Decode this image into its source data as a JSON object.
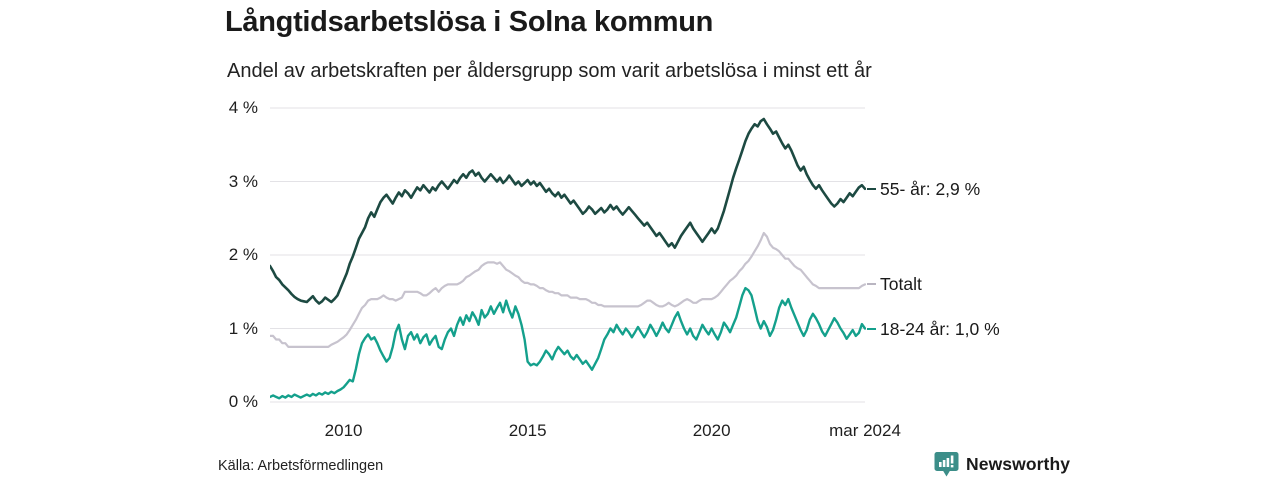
{
  "header": {
    "title": "Långtidsarbetslösa i Solna kommun",
    "subtitle": "Andel av arbetskraften per åldersgrupp som varit arbetslösa i minst ett år"
  },
  "source": {
    "label": "Källa: Arbetsförmedlingen"
  },
  "branding": {
    "name": "Newsworthy",
    "color": "#2e807c",
    "icon": "newsworthy-bubble-barchart-icon"
  },
  "colors": {
    "grid": "#e3e2e6",
    "text": "#1a1a1a",
    "series_55": "#1d4a42",
    "series_total": "#c7c3ce",
    "series_18_24": "#14a08c"
  },
  "chart_data": {
    "type": "line",
    "title": "Långtidsarbetslösa i Solna kommun",
    "subtitle": "Andel av arbetskraften per åldersgrupp som varit arbetslösa i minst ett år",
    "x_start": "2008-01",
    "x_end": "2024-03",
    "x_axis": {
      "ticks": [
        {
          "label": "2010",
          "month_index": 24
        },
        {
          "label": "2015",
          "month_index": 84
        },
        {
          "label": "2020",
          "month_index": 144
        },
        {
          "label": "mar 2024",
          "month_index": 194
        }
      ]
    },
    "y_axis": {
      "unit": "%",
      "range": [
        0,
        4
      ],
      "ticks": [
        {
          "label": "4 %",
          "value": 4
        },
        {
          "label": "3 %",
          "value": 3
        },
        {
          "label": "2 %",
          "value": 2
        },
        {
          "label": "1 %",
          "value": 1
        },
        {
          "label": "0 %",
          "value": 0
        }
      ]
    },
    "legend_position": "right-end-labels",
    "grid": true,
    "series": [
      {
        "name": "55- år",
        "end_label": "55- år: 2,9 %",
        "color": "#1d4a42",
        "stroke_width": 2.6,
        "values": [
          1.85,
          1.78,
          1.7,
          1.66,
          1.6,
          1.56,
          1.52,
          1.47,
          1.43,
          1.4,
          1.38,
          1.37,
          1.36,
          1.4,
          1.44,
          1.38,
          1.34,
          1.37,
          1.42,
          1.39,
          1.36,
          1.4,
          1.45,
          1.55,
          1.65,
          1.75,
          1.88,
          1.98,
          2.1,
          2.22,
          2.3,
          2.38,
          2.5,
          2.58,
          2.52,
          2.62,
          2.72,
          2.78,
          2.82,
          2.76,
          2.7,
          2.78,
          2.85,
          2.8,
          2.88,
          2.84,
          2.78,
          2.85,
          2.92,
          2.88,
          2.95,
          2.9,
          2.85,
          2.92,
          2.88,
          2.95,
          3.0,
          2.95,
          2.9,
          2.96,
          3.02,
          2.98,
          3.05,
          3.1,
          3.05,
          3.12,
          3.15,
          3.08,
          3.12,
          3.05,
          3.0,
          3.05,
          3.1,
          3.05,
          3.0,
          3.05,
          2.98,
          3.02,
          3.08,
          3.02,
          2.96,
          3.0,
          2.94,
          2.98,
          3.02,
          2.96,
          3.0,
          2.94,
          2.98,
          2.92,
          2.86,
          2.9,
          2.84,
          2.8,
          2.85,
          2.78,
          2.82,
          2.76,
          2.7,
          2.74,
          2.68,
          2.62,
          2.56,
          2.6,
          2.66,
          2.62,
          2.56,
          2.6,
          2.64,
          2.58,
          2.62,
          2.68,
          2.62,
          2.66,
          2.6,
          2.55,
          2.6,
          2.65,
          2.6,
          2.55,
          2.5,
          2.45,
          2.4,
          2.44,
          2.38,
          2.32,
          2.26,
          2.3,
          2.24,
          2.18,
          2.12,
          2.16,
          2.1,
          2.18,
          2.26,
          2.32,
          2.38,
          2.44,
          2.36,
          2.3,
          2.24,
          2.18,
          2.24,
          2.3,
          2.36,
          2.3,
          2.36,
          2.48,
          2.6,
          2.75,
          2.9,
          3.05,
          3.18,
          3.3,
          3.42,
          3.55,
          3.65,
          3.72,
          3.78,
          3.75,
          3.82,
          3.85,
          3.78,
          3.72,
          3.65,
          3.68,
          3.6,
          3.52,
          3.45,
          3.5,
          3.42,
          3.32,
          3.22,
          3.15,
          3.2,
          3.1,
          3.02,
          2.95,
          2.9,
          2.95,
          2.88,
          2.82,
          2.76,
          2.7,
          2.66,
          2.7,
          2.76,
          2.72,
          2.78,
          2.84,
          2.8,
          2.86,
          2.92,
          2.95,
          2.9
        ]
      },
      {
        "name": "Totalt",
        "end_label": "Totalt",
        "color": "#c7c3ce",
        "stroke_width": 2.2,
        "values": [
          0.9,
          0.9,
          0.85,
          0.85,
          0.8,
          0.8,
          0.75,
          0.75,
          0.75,
          0.75,
          0.75,
          0.75,
          0.75,
          0.75,
          0.75,
          0.75,
          0.75,
          0.75,
          0.75,
          0.75,
          0.78,
          0.8,
          0.82,
          0.85,
          0.88,
          0.92,
          0.98,
          1.05,
          1.12,
          1.2,
          1.28,
          1.32,
          1.38,
          1.4,
          1.4,
          1.4,
          1.42,
          1.45,
          1.42,
          1.4,
          1.4,
          1.38,
          1.4,
          1.42,
          1.5,
          1.5,
          1.5,
          1.5,
          1.5,
          1.48,
          1.45,
          1.45,
          1.48,
          1.52,
          1.55,
          1.5,
          1.55,
          1.58,
          1.6,
          1.6,
          1.6,
          1.6,
          1.62,
          1.65,
          1.7,
          1.72,
          1.75,
          1.78,
          1.8,
          1.85,
          1.88,
          1.9,
          1.9,
          1.9,
          1.88,
          1.9,
          1.85,
          1.8,
          1.78,
          1.75,
          1.72,
          1.7,
          1.65,
          1.62,
          1.62,
          1.6,
          1.6,
          1.58,
          1.55,
          1.55,
          1.52,
          1.5,
          1.5,
          1.48,
          1.48,
          1.45,
          1.45,
          1.45,
          1.42,
          1.42,
          1.42,
          1.4,
          1.4,
          1.4,
          1.38,
          1.35,
          1.35,
          1.32,
          1.32,
          1.3,
          1.3,
          1.3,
          1.3,
          1.3,
          1.3,
          1.3,
          1.3,
          1.3,
          1.3,
          1.3,
          1.3,
          1.32,
          1.35,
          1.38,
          1.38,
          1.35,
          1.32,
          1.3,
          1.3,
          1.32,
          1.35,
          1.32,
          1.3,
          1.32,
          1.35,
          1.38,
          1.4,
          1.38,
          1.35,
          1.35,
          1.38,
          1.4,
          1.4,
          1.4,
          1.4,
          1.42,
          1.45,
          1.5,
          1.55,
          1.6,
          1.65,
          1.68,
          1.72,
          1.78,
          1.82,
          1.88,
          1.92,
          1.98,
          2.05,
          2.12,
          2.2,
          2.3,
          2.25,
          2.15,
          2.1,
          2.08,
          2.05,
          2.0,
          1.95,
          1.95,
          1.9,
          1.85,
          1.82,
          1.8,
          1.75,
          1.7,
          1.65,
          1.6,
          1.58,
          1.55,
          1.55,
          1.55,
          1.55,
          1.55,
          1.55,
          1.55,
          1.55,
          1.55,
          1.55,
          1.55,
          1.55,
          1.55,
          1.55,
          1.58,
          1.6
        ]
      },
      {
        "name": "18-24 år",
        "end_label": "18-24 år: 1,0 %",
        "color": "#14a08c",
        "stroke_width": 2.4,
        "values": [
          0.07,
          0.09,
          0.07,
          0.05,
          0.08,
          0.06,
          0.09,
          0.07,
          0.1,
          0.08,
          0.06,
          0.08,
          0.1,
          0.08,
          0.11,
          0.09,
          0.12,
          0.1,
          0.13,
          0.11,
          0.14,
          0.12,
          0.15,
          0.17,
          0.2,
          0.25,
          0.3,
          0.28,
          0.45,
          0.65,
          0.8,
          0.87,
          0.92,
          0.85,
          0.88,
          0.8,
          0.7,
          0.62,
          0.55,
          0.6,
          0.75,
          0.95,
          1.05,
          0.85,
          0.72,
          0.9,
          0.95,
          0.85,
          0.92,
          0.8,
          0.88,
          0.92,
          0.78,
          0.85,
          0.9,
          0.75,
          0.72,
          0.85,
          0.95,
          1.0,
          0.9,
          1.05,
          1.15,
          1.05,
          1.18,
          1.1,
          1.22,
          1.15,
          1.05,
          1.25,
          1.15,
          1.2,
          1.3,
          1.2,
          1.28,
          1.35,
          1.22,
          1.38,
          1.25,
          1.15,
          1.3,
          1.2,
          1.05,
          0.85,
          0.55,
          0.5,
          0.52,
          0.5,
          0.55,
          0.62,
          0.7,
          0.65,
          0.58,
          0.68,
          0.75,
          0.7,
          0.65,
          0.7,
          0.62,
          0.58,
          0.64,
          0.58,
          0.52,
          0.56,
          0.5,
          0.44,
          0.52,
          0.6,
          0.72,
          0.85,
          0.92,
          1.0,
          0.95,
          1.05,
          0.98,
          0.92,
          1.0,
          0.95,
          0.88,
          0.95,
          1.02,
          0.95,
          0.88,
          0.95,
          1.05,
          0.98,
          0.9,
          0.98,
          1.08,
          1.0,
          0.95,
          1.05,
          1.15,
          1.22,
          1.1,
          1.0,
          0.92,
          1.0,
          0.9,
          0.85,
          0.95,
          1.05,
          0.98,
          0.92,
          1.0,
          0.92,
          0.85,
          0.95,
          1.08,
          1.02,
          0.95,
          1.05,
          1.15,
          1.3,
          1.45,
          1.55,
          1.52,
          1.45,
          1.28,
          1.1,
          1.0,
          1.1,
          1.02,
          0.9,
          0.98,
          1.12,
          1.28,
          1.38,
          1.32,
          1.4,
          1.28,
          1.18,
          1.08,
          0.98,
          0.9,
          0.98,
          1.12,
          1.2,
          1.14,
          1.06,
          0.96,
          0.9,
          0.98,
          1.06,
          1.14,
          1.08,
          1.0,
          0.94,
          0.86,
          0.92,
          0.98,
          0.9,
          0.94,
          1.06,
          1.0
        ]
      }
    ]
  }
}
